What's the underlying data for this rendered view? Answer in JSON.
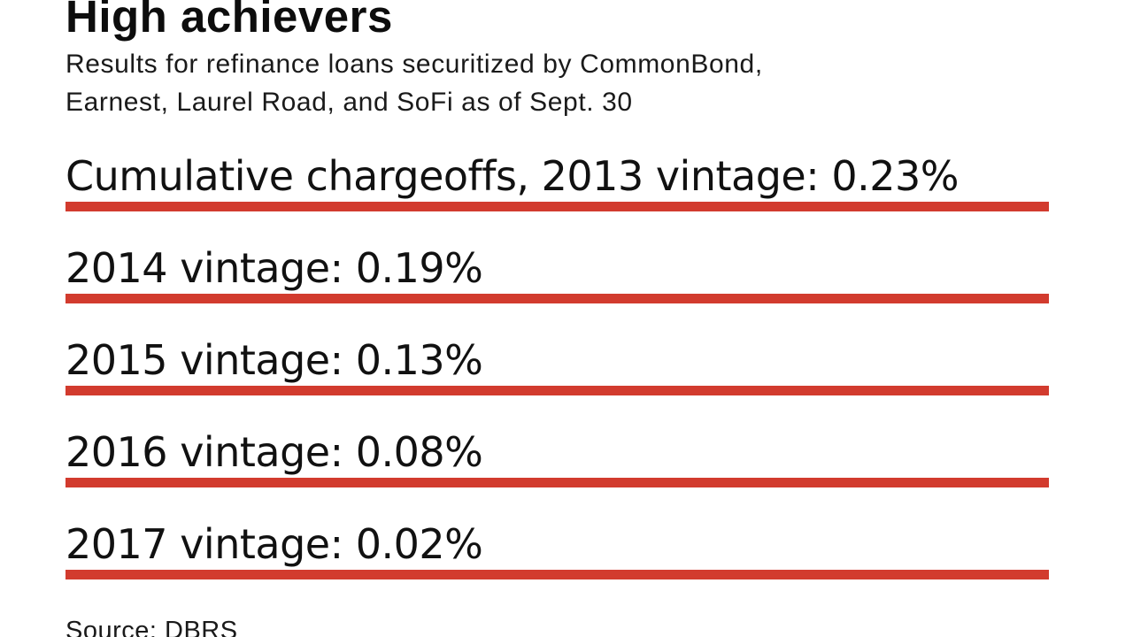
{
  "header": {
    "title": "High achievers",
    "subtitle_lines": [
      "Results for refinance loans securitized by CommonBond,",
      "Earnest, Laurel Road, and SoFi as of Sept. 30"
    ],
    "subtitle": "Results for refinance loans securitized by CommonBond, Earnest, Laurel Road, and SoFi as of Sept. 30"
  },
  "rows": [
    {
      "label": "Cumulative chargeoffs, 2013 vintage: 0.23%",
      "vintage": "2013",
      "value": "0.23%"
    },
    {
      "label": "2014 vintage: 0.19%",
      "vintage": "2014",
      "value": "0.19%"
    },
    {
      "label": "2015 vintage: 0.13%",
      "vintage": "2015",
      "value": "0.13%"
    },
    {
      "label": "2016 vintage: 0.08%",
      "vintage": "2016",
      "value": "0.08%"
    },
    {
      "label": "2017 vintage: 0.02%",
      "vintage": "2017",
      "value": "0.02%"
    }
  ],
  "footer": {
    "source": "Source: DBRS"
  },
  "colors": {
    "accent_red": "#d23b2e",
    "text": "#111111",
    "background": "#ffffff"
  },
  "chart_data": {
    "type": "bar",
    "title": "High achievers",
    "subtitle": "Results for refinance loans securitized by CommonBond, Earnest, Laurel Road, and SoFi as of Sept. 30",
    "categories": [
      "2013 vintage",
      "2014 vintage",
      "2015 vintage",
      "2016 vintage",
      "2017 vintage"
    ],
    "values": [
      0.23,
      0.19,
      0.13,
      0.08,
      0.02
    ],
    "unit": "%",
    "ylabel": "Cumulative chargeoffs (%)",
    "xlabel": "",
    "source": "Source: DBRS",
    "legend": "none",
    "grid": false,
    "bar_color": "#d23b2e",
    "layout_note": "values shown as inline text labels; red rules are full-width decorative underlines, not proportional bars"
  }
}
